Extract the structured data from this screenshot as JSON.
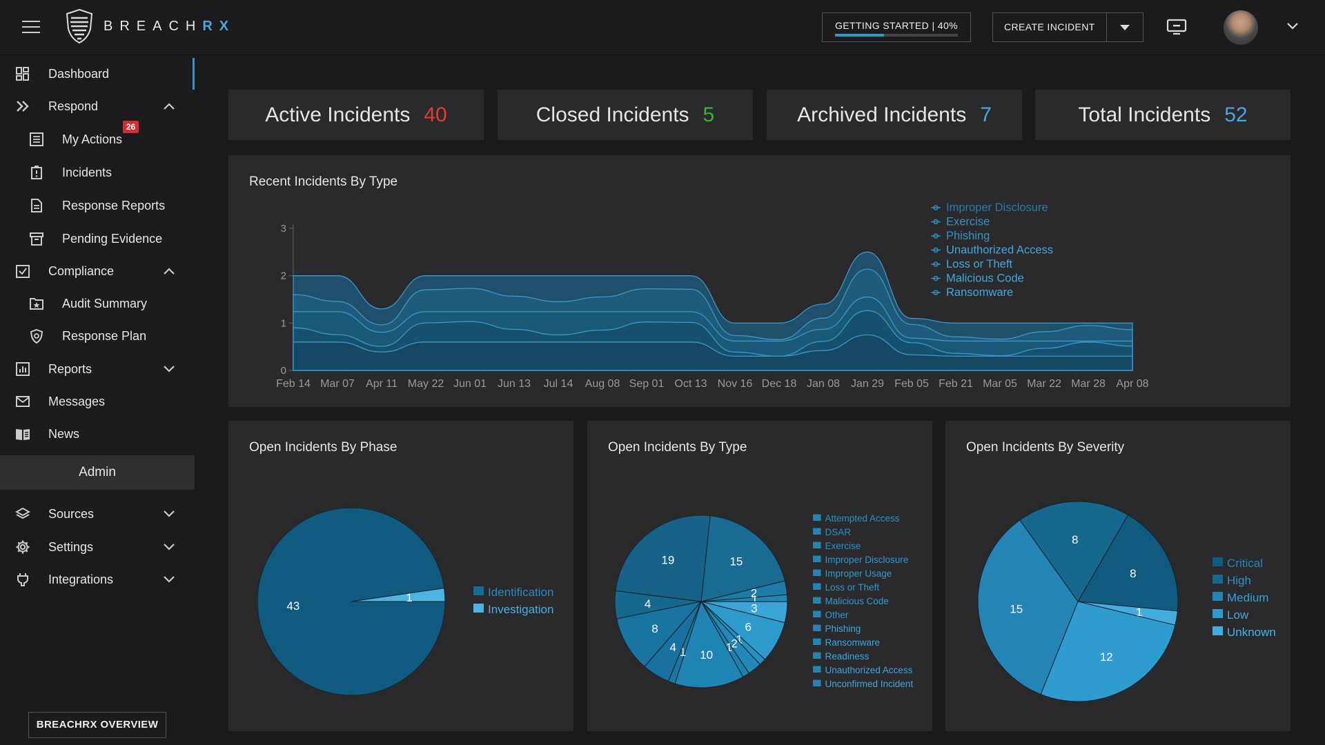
{
  "header": {
    "logo_text_a": "BREACH",
    "logo_text_b": "RX",
    "getting_started": "GETTING STARTED | 40%",
    "getting_started_progress": 40,
    "create_incident": "CREATE INCIDENT"
  },
  "sidebar": {
    "dashboard": "Dashboard",
    "respond": "Respond",
    "my_actions": "My Actions",
    "my_actions_badge": "26",
    "incidents": "Incidents",
    "response_reports": "Response Reports",
    "pending_evidence": "Pending Evidence",
    "compliance": "Compliance",
    "audit_summary": "Audit Summary",
    "response_plan": "Response Plan",
    "reports": "Reports",
    "messages": "Messages",
    "news": "News",
    "admin": "Admin",
    "sources": "Sources",
    "settings": "Settings",
    "integrations": "Integrations",
    "overview": "BREACHRX OVERVIEW"
  },
  "stats": {
    "active_label": "Active Incidents",
    "active_value": "40",
    "active_color": "#e53935",
    "closed_label": "Closed Incidents",
    "closed_value": "5",
    "closed_color": "#3fae3f",
    "archived_label": "Archived Incidents",
    "archived_value": "7",
    "archived_color": "#4aa8d8",
    "total_label": "Total Incidents",
    "total_value": "52",
    "total_color": "#4aa8d8"
  },
  "panels": {
    "recent": "Recent Incidents By Type",
    "phase": "Open Incidents By Phase",
    "type": "Open Incidents By Type",
    "severity": "Open Incidents By Severity"
  },
  "chart_data": [
    {
      "type": "area",
      "title": "Recent Incidents By Type",
      "x": [
        "Feb 14",
        "Mar 07",
        "Apr 11",
        "May 22",
        "Jun 01",
        "Jun 13",
        "Jul 14",
        "Aug 08",
        "Sep 01",
        "Oct 13",
        "Nov 16",
        "Dec 18",
        "Jan 08",
        "Jan 29",
        "Feb 05",
        "Feb 21",
        "Mar 05",
        "Mar 22",
        "Mar 28",
        "Apr 08"
      ],
      "ylim": [
        0,
        3
      ],
      "yticks": [
        0,
        1,
        2,
        3
      ],
      "legend": "right",
      "total": [
        2,
        2,
        1.3,
        2,
        2,
        2,
        2,
        2,
        2,
        2,
        1,
        1,
        1.4,
        2.5,
        1.1,
        1,
        1,
        1,
        1,
        1
      ],
      "series": [
        {
          "name": "Improper Disclosure"
        },
        {
          "name": "Exercise"
        },
        {
          "name": "Phishing"
        },
        {
          "name": "Unauthorized Access"
        },
        {
          "name": "Loss or Theft"
        },
        {
          "name": "Malicious Code"
        },
        {
          "name": "Ransomware"
        }
      ]
    },
    {
      "type": "pie",
      "title": "Open Incidents By Phase",
      "slices": [
        {
          "name": "Identification",
          "value": 43,
          "color": "#0f5a7e"
        },
        {
          "name": "Investigation",
          "value": 1,
          "color": "#4fb3e0"
        }
      ]
    },
    {
      "type": "pie",
      "title": "Open Incidents By Type",
      "slices": [
        {
          "name": "Attempted Access",
          "value": 15,
          "color": "#1a6b93"
        },
        {
          "name": "DSAR",
          "value": 2,
          "color": "#1d7ba6"
        },
        {
          "name": "Exercise",
          "value": 1,
          "color": "#2186b4"
        },
        {
          "name": "Improper Disclosure",
          "value": 3,
          "color": "#3aa5d6"
        },
        {
          "name": "Improper Usage",
          "value": 6,
          "color": "#2d9acb"
        },
        {
          "name": "Loss or Theft",
          "value": 1,
          "color": "#2790c1"
        },
        {
          "name": "Malicious Code",
          "value": 2,
          "color": "#2388b8"
        },
        {
          "name": "Other",
          "value": 1,
          "color": "#207fae"
        },
        {
          "name": "Phishing",
          "value": 10,
          "color": "#1f84b3"
        },
        {
          "name": "Ransomware",
          "value": 1,
          "color": "#1b76a2"
        },
        {
          "name": "Readiness",
          "value": 4,
          "color": "#1a70a0"
        },
        {
          "name": "Unauthorized Access",
          "value": 8,
          "color": "#1a74a1"
        },
        {
          "name": "Unconfirmed Incident",
          "value": 4,
          "color": "#16688f"
        },
        {
          "name": "",
          "value": 19,
          "color": "#166289"
        }
      ],
      "legend": [
        "Attempted Access",
        "DSAR",
        "Exercise",
        "Improper Disclosure",
        "Improper Usage",
        "Loss or Theft",
        "Malicious Code",
        "Other",
        "Phishing",
        "Ransomware",
        "Readiness",
        "Unauthorized Access",
        "Unconfirmed Incident"
      ]
    },
    {
      "type": "pie",
      "title": "Open Incidents By Severity",
      "slices": [
        {
          "name": "Critical",
          "value": 8,
          "color": "#0f5a7e"
        },
        {
          "name": "Unknown",
          "value": 1,
          "color": "#45ace0"
        },
        {
          "name": "Low",
          "value": 12,
          "color": "#2f9ccf"
        },
        {
          "name": "Medium",
          "value": 15,
          "color": "#2584b6"
        },
        {
          "name": "High",
          "value": 8,
          "color": "#16688f"
        }
      ],
      "legend": [
        "Critical",
        "High",
        "Medium",
        "Low",
        "Unknown"
      ]
    }
  ]
}
